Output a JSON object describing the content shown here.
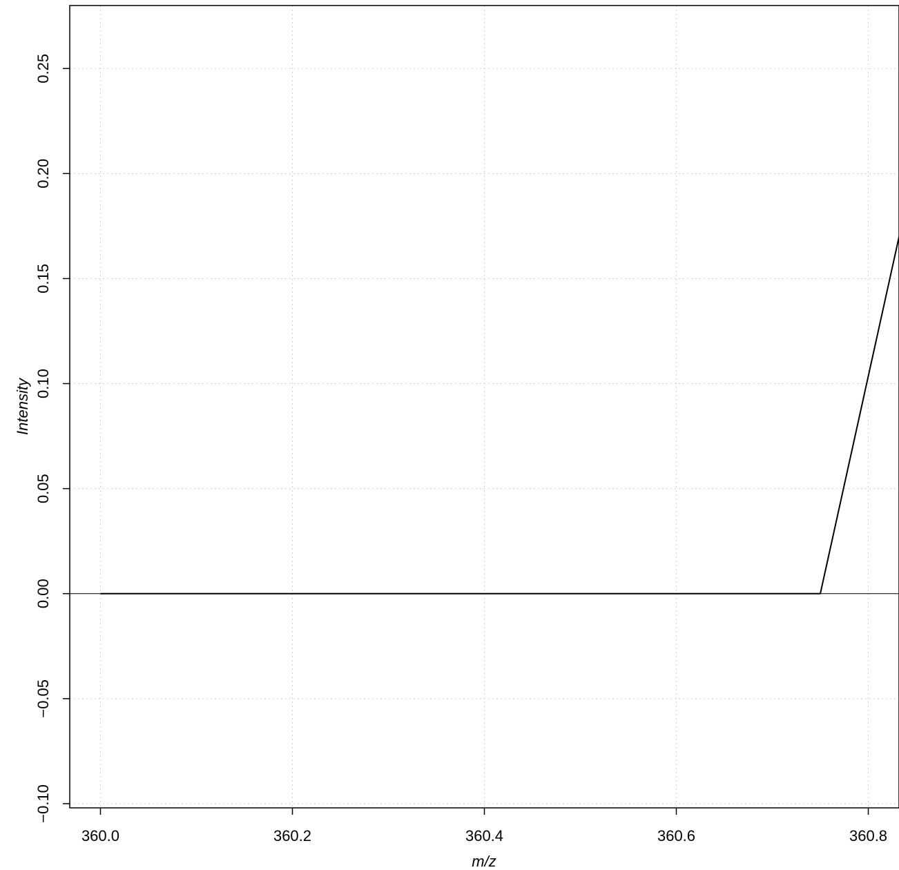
{
  "chart_data": {
    "type": "line",
    "title": "",
    "xlabel": "m/z",
    "ylabel": "Intensity",
    "xlim": [
      359.968,
      360.832
    ],
    "ylim": [
      -0.102,
      0.28
    ],
    "x_ticks": [
      360.0,
      360.2,
      360.4,
      360.6,
      360.8
    ],
    "x_tick_labels": [
      "360.0",
      "360.2",
      "360.4",
      "360.6",
      "360.8"
    ],
    "y_ticks": [
      -0.1,
      -0.05,
      0.0,
      0.05,
      0.1,
      0.15,
      0.2,
      0.25
    ],
    "y_tick_labels": [
      "−0.10",
      "−0.05",
      "0.00",
      "0.05",
      "0.10",
      "0.15",
      "0.20",
      "0.25"
    ],
    "grid": true,
    "baseline_y": 0,
    "series": [
      {
        "x": [
          360.0,
          360.75,
          360.835
        ],
        "y": [
          0.0,
          0.0,
          0.176
        ]
      }
    ],
    "colors": {
      "line": "#000000",
      "grid": "#d3d3d3",
      "frame": "#000000"
    }
  }
}
